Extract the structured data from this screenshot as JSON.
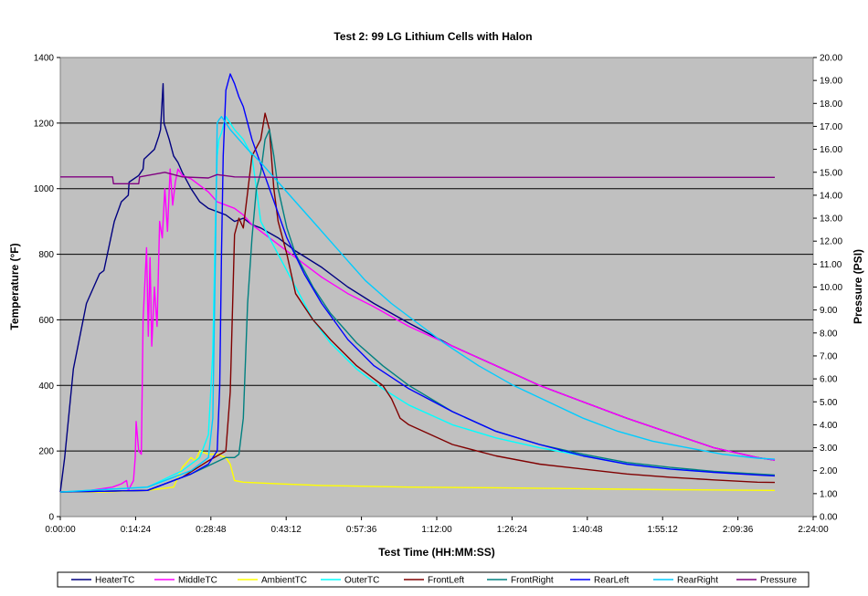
{
  "chart_data": {
    "type": "line",
    "title": "Test 2: 99 LG Lithium Cells with Halon",
    "xlabel": "Test Time (HH:MM:SS)",
    "ylabel": "Temperature (°F)",
    "y2label": "Pressure (PSI)",
    "x_unit": "seconds",
    "xlim": [
      0,
      8640
    ],
    "ylim": [
      0,
      1400
    ],
    "y2lim": [
      0,
      20
    ],
    "x_ticks": [
      {
        "value": 0,
        "label": "0:00:00"
      },
      {
        "value": 864,
        "label": "0:14:24"
      },
      {
        "value": 1728,
        "label": "0:28:48"
      },
      {
        "value": 2592,
        "label": "0:43:12"
      },
      {
        "value": 3456,
        "label": "0:57:36"
      },
      {
        "value": 4320,
        "label": "1:12:00"
      },
      {
        "value": 5184,
        "label": "1:26:24"
      },
      {
        "value": 6048,
        "label": "1:40:48"
      },
      {
        "value": 6912,
        "label": "1:55:12"
      },
      {
        "value": 7776,
        "label": "2:09:36"
      },
      {
        "value": 8640,
        "label": "2:24:00"
      }
    ],
    "y_ticks": [
      "0",
      "200",
      "400",
      "600",
      "800",
      "1000",
      "1200",
      "1400"
    ],
    "y2_ticks": [
      "0.00",
      "1.00",
      "2.00",
      "3.00",
      "4.00",
      "5.00",
      "6.00",
      "7.00",
      "8.00",
      "9.00",
      "10.00",
      "11.00",
      "12.00",
      "13.00",
      "14.00",
      "15.00",
      "16.00",
      "17.00",
      "18.00",
      "19.00",
      "20.00"
    ],
    "grid": "horizontal major lines on primary axis",
    "plot_background": "#c0c0c0",
    "legend_position": "bottom",
    "series": [
      {
        "name": "HeaterTC",
        "color": "#000080",
        "axis": "left",
        "x": [
          0,
          50,
          150,
          300,
          450,
          500,
          620,
          700,
          780,
          790,
          900,
          950,
          960,
          1080,
          1130,
          1150,
          1180,
          1190,
          1250,
          1300,
          1350,
          1400,
          1500,
          1600,
          1700,
          1800,
          1900,
          2000,
          2100,
          2200,
          2300,
          2500,
          2700,
          3000,
          3300,
          3600,
          4000,
          4500,
          5000,
          5500,
          6000,
          6500,
          7000,
          7500,
          8000,
          8200
        ],
        "y": [
          75,
          180,
          450,
          650,
          740,
          750,
          900,
          960,
          980,
          1020,
          1040,
          1060,
          1090,
          1120,
          1160,
          1180,
          1320,
          1200,
          1150,
          1100,
          1080,
          1050,
          1000,
          960,
          940,
          930,
          920,
          900,
          910,
          890,
          880,
          850,
          810,
          760,
          700,
          650,
          590,
          520,
          460,
          400,
          350,
          300,
          255,
          210,
          180,
          172
        ]
      },
      {
        "name": "MiddleTC",
        "color": "#ff00ff",
        "axis": "left",
        "x": [
          0,
          300,
          600,
          700,
          760,
          780,
          840,
          860,
          870,
          900,
          930,
          950,
          990,
          1010,
          1030,
          1050,
          1080,
          1110,
          1140,
          1170,
          1200,
          1230,
          1260,
          1290,
          1320,
          1350,
          1400,
          1500,
          1600,
          1700,
          1800,
          1900,
          2000,
          2100,
          2200,
          2300,
          2400,
          2600,
          2800,
          3000,
          3300,
          3600,
          4000,
          4500,
          5000,
          5500,
          6000,
          6500,
          7000,
          7500,
          8000,
          8200
        ],
        "y": [
          75,
          78,
          90,
          100,
          110,
          80,
          110,
          180,
          290,
          200,
          190,
          600,
          820,
          550,
          790,
          520,
          700,
          580,
          900,
          850,
          1000,
          870,
          1060,
          950,
          1020,
          1060,
          1040,
          1030,
          1010,
          990,
          960,
          950,
          940,
          920,
          890,
          870,
          850,
          810,
          770,
          730,
          680,
          640,
          580,
          520,
          460,
          400,
          350,
          300,
          255,
          210,
          180,
          172
        ]
      },
      {
        "name": "AmbientTC",
        "color": "#ffff00",
        "axis": "left",
        "x": [
          0,
          500,
          1000,
          1300,
          1400,
          1500,
          1550,
          1600,
          1700,
          1800,
          1900,
          1950,
          2000,
          2100,
          2500,
          3000,
          4000,
          5000,
          6000,
          7000,
          8200
        ],
        "y": [
          75,
          75,
          80,
          90,
          150,
          180,
          170,
          200,
          190,
          190,
          180,
          160,
          110,
          105,
          100,
          95,
          90,
          88,
          85,
          82,
          80
        ]
      },
      {
        "name": "OuterTC",
        "color": "#00ffff",
        "axis": "left",
        "x": [
          0,
          1000,
          1400,
          1600,
          1700,
          1750,
          1780,
          1800,
          1820,
          1850,
          1900,
          1950,
          2000,
          2100,
          2200,
          2300,
          2500,
          2700,
          2900,
          3100,
          3400,
          3700,
          4000,
          4500,
          5000,
          5500,
          6000,
          6500,
          7000,
          7500,
          8000,
          8200
        ],
        "y": [
          75,
          90,
          140,
          180,
          250,
          500,
          900,
          1100,
          1150,
          1170,
          1220,
          1200,
          1180,
          1150,
          1100,
          900,
          800,
          700,
          600,
          530,
          450,
          390,
          340,
          280,
          240,
          210,
          185,
          160,
          145,
          135,
          128,
          125
        ]
      },
      {
        "name": "FrontLeft",
        "color": "#800000",
        "axis": "left",
        "x": [
          0,
          1000,
          1400,
          1700,
          1900,
          1950,
          2000,
          2050,
          2100,
          2200,
          2300,
          2350,
          2400,
          2450,
          2500,
          2600,
          2700,
          2900,
          3100,
          3400,
          3700,
          3800,
          3850,
          3900,
          4000,
          4500,
          5000,
          5500,
          6000,
          6500,
          7000,
          7500,
          8000,
          8200
        ],
        "y": [
          75,
          80,
          120,
          170,
          200,
          380,
          860,
          910,
          880,
          1100,
          1150,
          1230,
          1180,
          1000,
          900,
          800,
          680,
          600,
          540,
          460,
          400,
          360,
          330,
          300,
          280,
          220,
          185,
          160,
          145,
          130,
          120,
          112,
          105,
          104
        ]
      },
      {
        "name": "FrontRight",
        "color": "#008080",
        "axis": "left",
        "x": [
          0,
          1000,
          1500,
          1900,
          2000,
          2050,
          2100,
          2150,
          2200,
          2250,
          2300,
          2350,
          2400,
          2450,
          2500,
          2600,
          2700,
          2900,
          3100,
          3400,
          3700,
          4000,
          4500,
          5000,
          5500,
          6000,
          6500,
          7000,
          7500,
          8000,
          8200
        ],
        "y": [
          75,
          80,
          130,
          180,
          180,
          190,
          300,
          650,
          850,
          1000,
          1050,
          1150,
          1180,
          1100,
          1000,
          880,
          800,
          700,
          620,
          530,
          460,
          400,
          320,
          260,
          220,
          190,
          165,
          150,
          138,
          130,
          127
        ]
      },
      {
        "name": "RearLeft",
        "color": "#0000ff",
        "axis": "left",
        "x": [
          0,
          1000,
          1500,
          1700,
          1800,
          1830,
          1850,
          1870,
          1900,
          1950,
          2000,
          2050,
          2100,
          2200,
          2400,
          2600,
          2800,
          3000,
          3300,
          3600,
          4000,
          4500,
          5000,
          5500,
          6000,
          6500,
          7000,
          7500,
          8000,
          8200
        ],
        "y": [
          75,
          80,
          130,
          160,
          200,
          400,
          800,
          1100,
          1300,
          1350,
          1320,
          1280,
          1250,
          1150,
          1000,
          850,
          740,
          650,
          540,
          460,
          390,
          320,
          260,
          220,
          185,
          160,
          145,
          135,
          127,
          124
        ]
      },
      {
        "name": "RearRight",
        "color": "#00ccff",
        "axis": "left",
        "x": [
          0,
          1000,
          1500,
          1700,
          1750,
          1780,
          1800,
          1820,
          1850,
          1900,
          1950,
          2050,
          2150,
          2300,
          2400,
          2500,
          2700,
          2900,
          3100,
          3300,
          3500,
          3800,
          4100,
          4400,
          4800,
          5200,
          5600,
          6000,
          6400,
          6800,
          7200,
          7600,
          8000,
          8200
        ],
        "y": [
          75,
          90,
          140,
          180,
          300,
          800,
          1200,
          1210,
          1220,
          1200,
          1180,
          1150,
          1120,
          1080,
          1050,
          1020,
          960,
          900,
          840,
          780,
          720,
          650,
          590,
          530,
          460,
          400,
          350,
          300,
          260,
          230,
          210,
          190,
          178,
          175
        ]
      },
      {
        "name": "Pressure",
        "color": "#800080",
        "axis": "right",
        "x": [
          0,
          580,
          600,
          610,
          900,
          910,
          1200,
          1300,
          1400,
          1700,
          1800,
          2000,
          2500,
          3000,
          4000,
          5000,
          6000,
          7000,
          8000,
          8200
        ],
        "y": [
          14.8,
          14.8,
          14.8,
          14.5,
          14.5,
          14.8,
          15.0,
          14.9,
          14.8,
          14.75,
          14.9,
          14.8,
          14.78,
          14.78,
          14.78,
          14.78,
          14.78,
          14.78,
          14.78,
          14.78
        ]
      }
    ]
  }
}
